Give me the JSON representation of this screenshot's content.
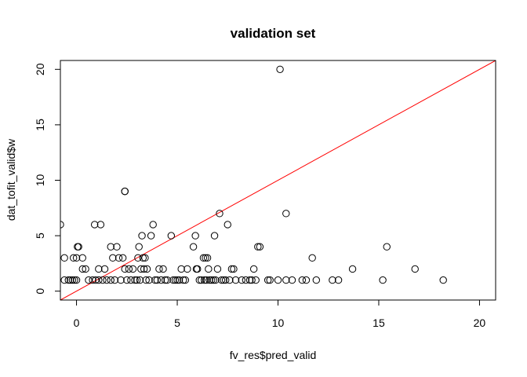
{
  "chart_data": {
    "type": "scatter",
    "title": "validation set",
    "xlabel": "fv_res$pred_valid",
    "ylabel": "dat_tofit_valid$w",
    "xlim": [
      -0.8,
      20.8
    ],
    "ylim": [
      -0.8,
      20.8
    ],
    "x_ticks": [
      0,
      5,
      10,
      15,
      20
    ],
    "y_ticks": [
      0,
      5,
      10,
      15,
      20
    ],
    "x_tick_labels": [
      "0",
      "5",
      "10",
      "15",
      "20"
    ],
    "y_tick_labels": [
      "0",
      "5",
      "10",
      "15",
      "20"
    ],
    "grid": false,
    "legend": "none",
    "reference_line": {
      "intercept": 0,
      "slope": 1,
      "color": "#ff0000"
    },
    "point_color": "#000000",
    "points": [
      {
        "x": -0.8,
        "y": 6
      },
      {
        "x": -0.6,
        "y": 3
      },
      {
        "x": -0.6,
        "y": 1
      },
      {
        "x": -0.4,
        "y": 1
      },
      {
        "x": -0.3,
        "y": 1
      },
      {
        "x": -0.2,
        "y": 1
      },
      {
        "x": -0.1,
        "y": 1
      },
      {
        "x": 0.0,
        "y": 1
      },
      {
        "x": -0.15,
        "y": 3
      },
      {
        "x": 0.0,
        "y": 3
      },
      {
        "x": 0.05,
        "y": 4
      },
      {
        "x": 0.1,
        "y": 4
      },
      {
        "x": 0.3,
        "y": 3
      },
      {
        "x": 0.3,
        "y": 2
      },
      {
        "x": 0.45,
        "y": 2
      },
      {
        "x": 0.6,
        "y": 1
      },
      {
        "x": 0.8,
        "y": 1
      },
      {
        "x": 0.9,
        "y": 6
      },
      {
        "x": 0.95,
        "y": 1
      },
      {
        "x": 1.1,
        "y": 1
      },
      {
        "x": 1.1,
        "y": 2
      },
      {
        "x": 1.2,
        "y": 6
      },
      {
        "x": 1.3,
        "y": 1
      },
      {
        "x": 1.4,
        "y": 2
      },
      {
        "x": 1.5,
        "y": 1
      },
      {
        "x": 1.7,
        "y": 1
      },
      {
        "x": 1.7,
        "y": 4
      },
      {
        "x": 1.8,
        "y": 3
      },
      {
        "x": 1.9,
        "y": 1
      },
      {
        "x": 2.0,
        "y": 4
      },
      {
        "x": 2.1,
        "y": 3
      },
      {
        "x": 2.2,
        "y": 1
      },
      {
        "x": 2.3,
        "y": 3
      },
      {
        "x": 2.4,
        "y": 9
      },
      {
        "x": 2.4,
        "y": 9
      },
      {
        "x": 2.4,
        "y": 2
      },
      {
        "x": 2.5,
        "y": 1
      },
      {
        "x": 2.6,
        "y": 2
      },
      {
        "x": 2.7,
        "y": 1
      },
      {
        "x": 2.8,
        "y": 2
      },
      {
        "x": 2.9,
        "y": 1
      },
      {
        "x": 3.0,
        "y": 1
      },
      {
        "x": 3.05,
        "y": 3
      },
      {
        "x": 3.1,
        "y": 4
      },
      {
        "x": 3.15,
        "y": 1
      },
      {
        "x": 3.2,
        "y": 2
      },
      {
        "x": 3.25,
        "y": 5
      },
      {
        "x": 3.3,
        "y": 3
      },
      {
        "x": 3.35,
        "y": 2
      },
      {
        "x": 3.4,
        "y": 3
      },
      {
        "x": 3.45,
        "y": 1
      },
      {
        "x": 3.5,
        "y": 2
      },
      {
        "x": 3.6,
        "y": 1
      },
      {
        "x": 3.7,
        "y": 5
      },
      {
        "x": 3.8,
        "y": 6
      },
      {
        "x": 3.9,
        "y": 1
      },
      {
        "x": 4.0,
        "y": 1
      },
      {
        "x": 4.1,
        "y": 2
      },
      {
        "x": 4.2,
        "y": 1
      },
      {
        "x": 4.3,
        "y": 2
      },
      {
        "x": 4.4,
        "y": 1
      },
      {
        "x": 4.5,
        "y": 1
      },
      {
        "x": 4.7,
        "y": 5
      },
      {
        "x": 4.8,
        "y": 1
      },
      {
        "x": 4.9,
        "y": 1
      },
      {
        "x": 5.0,
        "y": 1
      },
      {
        "x": 5.1,
        "y": 1
      },
      {
        "x": 5.2,
        "y": 2
      },
      {
        "x": 5.3,
        "y": 1
      },
      {
        "x": 5.4,
        "y": 1
      },
      {
        "x": 5.5,
        "y": 2
      },
      {
        "x": 5.8,
        "y": 4
      },
      {
        "x": 5.9,
        "y": 5
      },
      {
        "x": 5.95,
        "y": 2
      },
      {
        "x": 6.0,
        "y": 2
      },
      {
        "x": 6.1,
        "y": 1
      },
      {
        "x": 6.2,
        "y": 1
      },
      {
        "x": 6.3,
        "y": 3
      },
      {
        "x": 6.35,
        "y": 1
      },
      {
        "x": 6.4,
        "y": 3
      },
      {
        "x": 6.45,
        "y": 1
      },
      {
        "x": 6.5,
        "y": 3
      },
      {
        "x": 6.55,
        "y": 2
      },
      {
        "x": 6.6,
        "y": 1
      },
      {
        "x": 6.7,
        "y": 1
      },
      {
        "x": 6.8,
        "y": 1
      },
      {
        "x": 6.85,
        "y": 5
      },
      {
        "x": 6.9,
        "y": 1
      },
      {
        "x": 7.0,
        "y": 2
      },
      {
        "x": 7.1,
        "y": 7
      },
      {
        "x": 7.2,
        "y": 1
      },
      {
        "x": 7.3,
        "y": 1
      },
      {
        "x": 7.4,
        "y": 1
      },
      {
        "x": 7.5,
        "y": 6
      },
      {
        "x": 7.6,
        "y": 1
      },
      {
        "x": 7.7,
        "y": 2
      },
      {
        "x": 7.8,
        "y": 2
      },
      {
        "x": 7.9,
        "y": 1
      },
      {
        "x": 8.2,
        "y": 1
      },
      {
        "x": 8.4,
        "y": 1
      },
      {
        "x": 8.6,
        "y": 1
      },
      {
        "x": 8.7,
        "y": 1
      },
      {
        "x": 8.8,
        "y": 2
      },
      {
        "x": 8.9,
        "y": 1
      },
      {
        "x": 9.0,
        "y": 4
      },
      {
        "x": 9.1,
        "y": 4
      },
      {
        "x": 9.5,
        "y": 1
      },
      {
        "x": 9.6,
        "y": 1
      },
      {
        "x": 10.0,
        "y": 1
      },
      {
        "x": 10.1,
        "y": 20
      },
      {
        "x": 10.4,
        "y": 7
      },
      {
        "x": 10.4,
        "y": 1
      },
      {
        "x": 10.7,
        "y": 1
      },
      {
        "x": 11.2,
        "y": 1
      },
      {
        "x": 11.4,
        "y": 1
      },
      {
        "x": 11.7,
        "y": 3
      },
      {
        "x": 11.9,
        "y": 1
      },
      {
        "x": 12.7,
        "y": 1
      },
      {
        "x": 13.0,
        "y": 1
      },
      {
        "x": 13.7,
        "y": 2
      },
      {
        "x": 15.2,
        "y": 1
      },
      {
        "x": 15.4,
        "y": 4
      },
      {
        "x": 16.8,
        "y": 2
      },
      {
        "x": 18.2,
        "y": 1
      }
    ]
  }
}
